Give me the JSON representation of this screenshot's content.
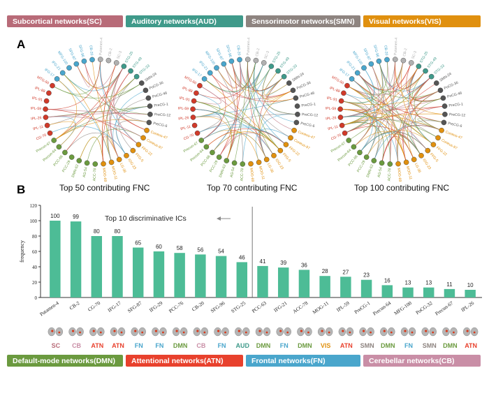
{
  "top_legend": [
    {
      "label": "Subcortical networks(SC)",
      "color": "#b86b78"
    },
    {
      "label": "Auditory networks(AUD)",
      "color": "#3f9a8a"
    },
    {
      "label": "Sensorimotor networks(SMN)",
      "color": "#8e8480"
    },
    {
      "label": "Visual networks(VIS)",
      "color": "#e0900f"
    }
  ],
  "bottom_legend": [
    {
      "label": "Default-mode networks(DMN)",
      "color": "#6b9a3f"
    },
    {
      "label": "Attentional networks(ATN)",
      "color": "#e8412d"
    },
    {
      "label": "Frontal networks(FN)",
      "color": "#4aa6cc"
    },
    {
      "label": "Cerebellar networks(CB)",
      "color": "#c98ea6"
    }
  ],
  "panel_a": "A",
  "panel_b": "B",
  "circos_captions": [
    "Top 50 contributing FNC",
    "Top 70 contributing FNC",
    "Top 100 contributing FNC"
  ],
  "circos_node_labels": [
    "Putamen-4",
    "CB-2",
    "SC-3",
    "STG-25",
    "STG-49",
    "STG-33",
    "SMN-24",
    "PoCG-36",
    "PoCG-48",
    "PreCG-1",
    "PreCG-12",
    "PreCG-6",
    "Cuneus-47",
    "Cuneus-97",
    "FFG-22",
    "FFG-5",
    "IOG-23",
    "LG-36",
    "MOG-11",
    "MOG-69",
    "ACC-78",
    "AG-54",
    "DMN-62",
    "PCC-29",
    "PCC-66",
    "Precun-64",
    "Precun-67",
    "CG-70",
    "IPL-11",
    "IPL-26",
    "IPL-59",
    "IPL-91",
    "IPL-88",
    "MTG-50",
    "IFG-17",
    "IFG-21",
    "MFG-100",
    "SFG-87",
    "SFG-96",
    "CB-20"
  ],
  "chart_data": {
    "type": "bar",
    "ylabel": "frequency",
    "ylim": [
      0,
      120
    ],
    "yticks": [
      0,
      20,
      40,
      60,
      80,
      100,
      120
    ],
    "annotation": "Top 10 discriminative ICs",
    "bar_color": "#4dbc96",
    "categories": [
      "Putamen-4",
      "CB-2",
      "CG-70",
      "IFG-17",
      "SFG-87",
      "IFG-29",
      "PCC-76",
      "CB-20",
      "SFG-96",
      "STG-25",
      "PCC-63",
      "IFG-21",
      "ACC-78",
      "MOG-11",
      "IPL-59",
      "PreCG-1",
      "Precun-64",
      "MFG-100",
      "PoCG-32",
      "Precun-67",
      "IPL-26"
    ],
    "values": [
      100,
      99,
      80,
      80,
      65,
      60,
      58,
      56,
      54,
      46,
      41,
      39,
      36,
      28,
      27,
      23,
      16,
      13,
      13,
      11,
      10
    ],
    "networks": [
      "SC",
      "CB",
      "ATN",
      "ATN",
      "FN",
      "FN",
      "DMN",
      "CB",
      "FN",
      "AUD",
      "DMN",
      "FN",
      "DMN",
      "VIS",
      "ATN",
      "SMN",
      "DMN",
      "FN",
      "SMN",
      "DMN",
      "ATN"
    ]
  },
  "network_colors": {
    "SC": "#b86b78",
    "CB": "#c98ea6",
    "ATN": "#e8412d",
    "FN": "#4aa6cc",
    "DMN": "#6b9a3f",
    "AUD": "#3f9a8a",
    "VIS": "#e0900f",
    "SMN": "#8e8480"
  }
}
